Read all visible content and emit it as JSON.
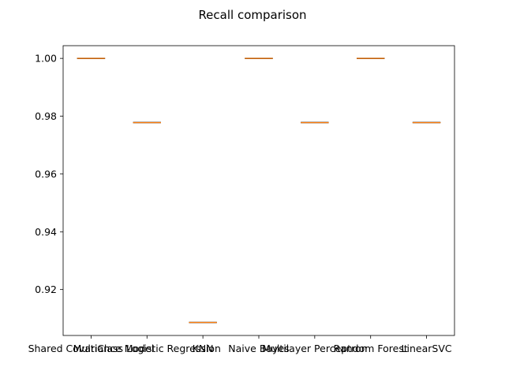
{
  "chart_data": {
    "type": "box",
    "title": "Recall comparison",
    "categories": [
      "Shared Covariance Model",
      "MultiClass Logistic Regression",
      "KNN",
      "Naive Bayes",
      "Multilayer Perceptron",
      "Random Forest",
      "LinearSVC"
    ],
    "values": [
      1.0,
      0.9778,
      0.9086,
      1.0,
      0.9778,
      1.0,
      0.9778
    ],
    "ylim": [
      0.9041,
      1.0044
    ],
    "yticks": [
      0.92,
      0.94,
      0.96,
      0.98,
      1.0
    ],
    "ytick_labels": [
      "0.92",
      "0.94",
      "0.96",
      "0.98",
      "1.00"
    ],
    "xlabel": "",
    "ylabel": "",
    "grid": false,
    "colors": {
      "median": "#ff7f0e",
      "box": "#000000",
      "axes": "#000000"
    }
  }
}
